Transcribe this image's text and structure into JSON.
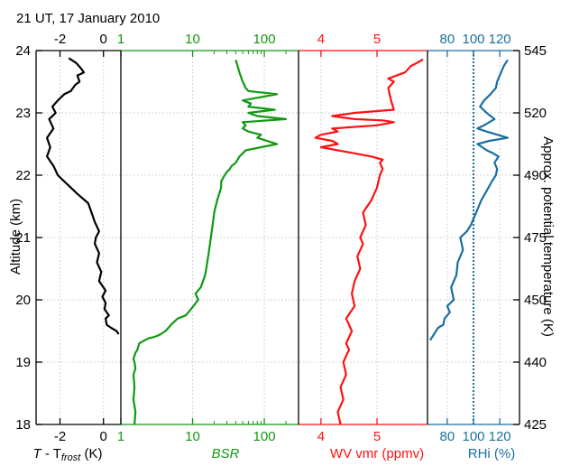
{
  "title": "21 UT, 17 January 2010",
  "chart_data": {
    "type": "line",
    "ylabel": "Altitude (km)",
    "ylim": [
      18,
      24
    ],
    "yticks": [
      18,
      19,
      20,
      21,
      22,
      23,
      24
    ],
    "right_axis": {
      "label": "Approx. potential temperature (K)",
      "tick_altitudes": [
        18,
        19,
        20,
        21,
        22,
        23,
        24
      ],
      "tick_labels": [
        "425",
        "440",
        "450",
        "475",
        "490",
        "520",
        "545"
      ]
    },
    "panels": [
      {
        "id": "tfrost",
        "xlabel_main": "T",
        "xlabel_mid": " - T",
        "xlabel_sub": "frost",
        "xlabel_unit": " (K)",
        "xlim": [
          -3.1,
          0.8
        ],
        "ticks": [
          -2,
          0
        ],
        "tick_labels": [
          "-2",
          "0"
        ],
        "color": "#000000",
        "series": [
          {
            "x": [
              0.7,
              0.6,
              0.35,
              0.15,
              0.1,
              0.25,
              0.05,
              0.1,
              -0.05,
              0.1,
              -0.2,
              -0.1,
              -0.3,
              -0.2,
              -0.4,
              -0.35,
              -0.2,
              -0.4,
              -0.55,
              -0.7,
              -1.2,
              -1.5,
              -1.8,
              -2.1,
              -2.3,
              -2.6,
              -2.45,
              -2.6,
              -2.3,
              -2.5,
              -2.2,
              -2.35,
              -2.1,
              -1.8,
              -1.5,
              -1.3,
              -1.1,
              -1.2,
              -0.9,
              -1.0,
              -1.25,
              -1.6
            ],
            "y": [
              19.45,
              19.5,
              19.55,
              19.6,
              19.7,
              19.75,
              19.85,
              19.95,
              20.05,
              20.15,
              20.3,
              20.45,
              20.6,
              20.75,
              20.9,
              21.0,
              21.1,
              21.25,
              21.4,
              21.55,
              21.7,
              21.8,
              21.9,
              22.0,
              22.15,
              22.3,
              22.45,
              22.6,
              22.75,
              22.9,
              23.0,
              23.1,
              23.2,
              23.3,
              23.35,
              23.45,
              23.5,
              23.6,
              23.65,
              23.7,
              23.8,
              23.88
            ]
          }
        ]
      },
      {
        "id": "bsr",
        "xlabel": "BSR",
        "log": true,
        "xlim": [
          1,
          300
        ],
        "ticks": [
          1,
          10,
          100
        ],
        "tick_labels": [
          "1",
          "10",
          "100"
        ],
        "color": "#119911",
        "series": [
          {
            "x": [
              1.55,
              1.6,
              1.5,
              1.55,
              1.5,
              1.6,
              1.55,
              1.5,
              1.55,
              1.6,
              1.7,
              1.75,
              1.8,
              2.0,
              2.4,
              2.8,
              3.2,
              3.6,
              4.2,
              5.0,
              6.2,
              8.0,
              9.5,
              12,
              11,
              13,
              15,
              16,
              17,
              18,
              19,
              20,
              22,
              25,
              25,
              28,
              30,
              33,
              35,
              40,
              45,
              50,
              55,
              150,
              80,
              90,
              60,
              50,
              55,
              50,
              200,
              80,
              60,
              140,
              60,
              65,
              50,
              150,
              60,
              55,
              50,
              45,
              40
            ],
            "y": [
              18.0,
              18.2,
              18.4,
              18.6,
              18.8,
              18.9,
              19.0,
              19.05,
              19.1,
              19.15,
              19.2,
              19.25,
              19.3,
              19.33,
              19.38,
              19.4,
              19.42,
              19.45,
              19.5,
              19.6,
              19.7,
              19.75,
              19.85,
              20.0,
              20.1,
              20.2,
              20.4,
              20.6,
              20.8,
              21.0,
              21.2,
              21.4,
              21.6,
              21.8,
              21.9,
              22.0,
              22.05,
              22.1,
              22.15,
              22.2,
              22.3,
              22.35,
              22.4,
              22.5,
              22.6,
              22.65,
              22.7,
              22.75,
              22.8,
              22.85,
              22.9,
              22.95,
              23.0,
              23.05,
              23.1,
              23.15,
              23.2,
              23.3,
              23.35,
              23.4,
              23.5,
              23.65,
              23.85
            ]
          }
        ]
      },
      {
        "id": "wv",
        "xlabel": "WV vmr (ppmv)",
        "xlim": [
          3.6,
          5.9
        ],
        "ticks": [
          4,
          5
        ],
        "tick_labels": [
          "4",
          "5"
        ],
        "color": "#ff1111",
        "series": [
          {
            "x": [
              4.35,
              4.3,
              4.4,
              4.35,
              4.45,
              4.4,
              4.5,
              4.45,
              4.55,
              4.45,
              4.6,
              4.55,
              4.6,
              4.7,
              4.65,
              4.75,
              4.7,
              4.8,
              4.75,
              4.9,
              5.0,
              5.05,
              5.1,
              5.05,
              5.1,
              4.9,
              4.6,
              4.3,
              4.0,
              4.3,
              4.2,
              3.9,
              4.0,
              4.3,
              4.2,
              5.0,
              5.3,
              5.1,
              4.6,
              4.2,
              4.6,
              5.3,
              5.25,
              5.2,
              5.3,
              5.2,
              5.5,
              5.6,
              5.75,
              5.82
            ],
            "y": [
              18.0,
              18.2,
              18.4,
              18.6,
              18.8,
              19.0,
              19.2,
              19.3,
              19.5,
              19.7,
              19.9,
              20.1,
              20.3,
              20.5,
              20.7,
              20.9,
              21.0,
              21.2,
              21.4,
              21.6,
              21.8,
              22.0,
              22.1,
              22.2,
              22.25,
              22.3,
              22.35,
              22.4,
              22.45,
              22.5,
              22.55,
              22.6,
              22.65,
              22.7,
              22.75,
              22.8,
              22.85,
              22.88,
              22.9,
              22.95,
              23.0,
              23.05,
              23.2,
              23.4,
              23.5,
              23.55,
              23.65,
              23.75,
              23.82,
              23.86
            ]
          }
        ]
      },
      {
        "id": "rhi",
        "xlabel": "RHi (%)",
        "xlim": [
          65,
          135
        ],
        "ticks": [
          80,
          100,
          120
        ],
        "tick_labels": [
          "80",
          "100",
          "120"
        ],
        "color": "#1a6fa0",
        "reference_x": 100,
        "series": [
          {
            "x": [
              67,
              70,
              73,
              77,
              78,
              82,
              80,
              85,
              83,
              87,
              88,
              92,
              90,
              95,
              98,
              100,
              103,
              106,
              110,
              114,
              117,
              118,
              116,
              119,
              115,
              110,
              103,
              112,
              126,
              110,
              103,
              108,
              112,
              116,
              110,
              105,
              108,
              113,
              117,
              118,
              120,
              123,
              126
            ],
            "y": [
              19.35,
              19.45,
              19.55,
              19.6,
              19.7,
              19.8,
              19.9,
              20.0,
              20.2,
              20.4,
              20.6,
              20.8,
              21.0,
              21.1,
              21.2,
              21.3,
              21.45,
              21.6,
              21.75,
              21.9,
              22.0,
              22.1,
              22.2,
              22.3,
              22.35,
              22.4,
              22.5,
              22.55,
              22.6,
              22.7,
              22.75,
              22.8,
              22.85,
              22.9,
              23.0,
              23.1,
              23.2,
              23.3,
              23.4,
              23.5,
              23.6,
              23.75,
              23.85
            ]
          }
        ]
      }
    ]
  }
}
